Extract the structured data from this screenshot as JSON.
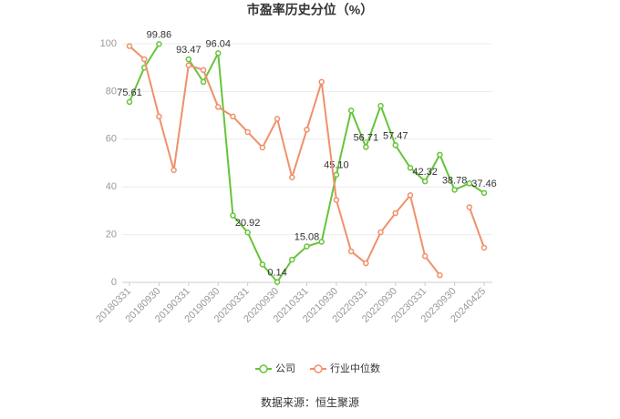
{
  "chart_data": {
    "type": "line",
    "title": "市盈率历史分位（%）",
    "source": "数据来源：恒生聚源",
    "categories": [
      "20180331",
      null,
      "20180930",
      null,
      "20190331",
      null,
      "20190930",
      null,
      "20200331",
      null,
      "20200930",
      null,
      "20210331",
      null,
      "20210930",
      null,
      "20220331",
      null,
      "20220930",
      null,
      "20230331",
      null,
      "20230930",
      null,
      "20240425"
    ],
    "series": [
      {
        "name": "公司",
        "color": "#66c43a",
        "values": [
          75.61,
          90,
          99.86,
          null,
          93.47,
          84,
          96.04,
          28,
          20.92,
          7.5,
          0.14,
          9.5,
          15.08,
          17,
          45.1,
          72,
          56.71,
          74,
          57.47,
          48,
          42.32,
          53.5,
          38.78,
          41.5,
          37.46
        ],
        "value_labels": [
          "75.61",
          null,
          "99.86",
          null,
          "93.47",
          null,
          "96.04",
          null,
          "20.92",
          null,
          "0.14",
          null,
          "15.08",
          null,
          "45.10",
          null,
          "56.71",
          null,
          "57.47",
          null,
          "42.32",
          null,
          "38.78",
          null,
          "37.46"
        ]
      },
      {
        "name": "行业中位数",
        "color": "#f0906a",
        "values": [
          99,
          93.5,
          69.5,
          47,
          91,
          89,
          73.5,
          69.5,
          63,
          56.5,
          68.5,
          44,
          64,
          84,
          34.5,
          13,
          8,
          21,
          29,
          36.5,
          11,
          3,
          null,
          31.5,
          14.5
        ]
      }
    ],
    "ylim": [
      0,
      100
    ],
    "yticks": [
      0,
      20,
      40,
      60,
      80,
      100
    ],
    "grid": true,
    "legend": "bottom"
  }
}
